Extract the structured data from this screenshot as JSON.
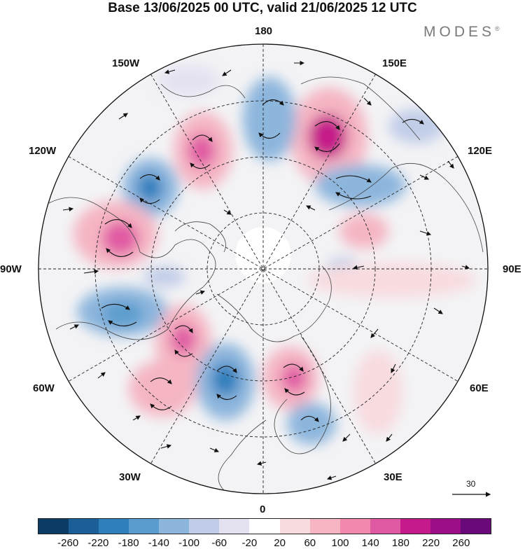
{
  "title": "Base 13/06/2025 00 UTC, valid 21/06/2025 12 UTC",
  "brand": {
    "name": "MODES",
    "mark": "®"
  },
  "longitude_labels": {
    "lon_180": "180",
    "lon_150e": "150E",
    "lon_120e": "120E",
    "lon_90e": "90E",
    "lon_60e": "60E",
    "lon_30e": "30E",
    "lon_0": "0",
    "lon_30w": "30W",
    "lon_60w": "60W",
    "lon_90w": "90W",
    "lon_120w": "120W",
    "lon_150w": "150W"
  },
  "reference_vector": {
    "label": "30"
  },
  "colorbar": {
    "colors": [
      "#0b3c66",
      "#1a5f98",
      "#2f7fbd",
      "#5a9ccd",
      "#8db6dd",
      "#c1cde8",
      "#e4e2f1",
      "#ffffff",
      "#f8dbdf",
      "#f5b5c3",
      "#f089ad",
      "#e05aa3",
      "#c51b8a",
      "#9c0e88",
      "#6a0979"
    ],
    "ticks": [
      "-260",
      "-220",
      "-180",
      "-140",
      "-100",
      "-60",
      "-20",
      "20",
      "60",
      "100",
      "140",
      "180",
      "220",
      "260"
    ]
  }
}
